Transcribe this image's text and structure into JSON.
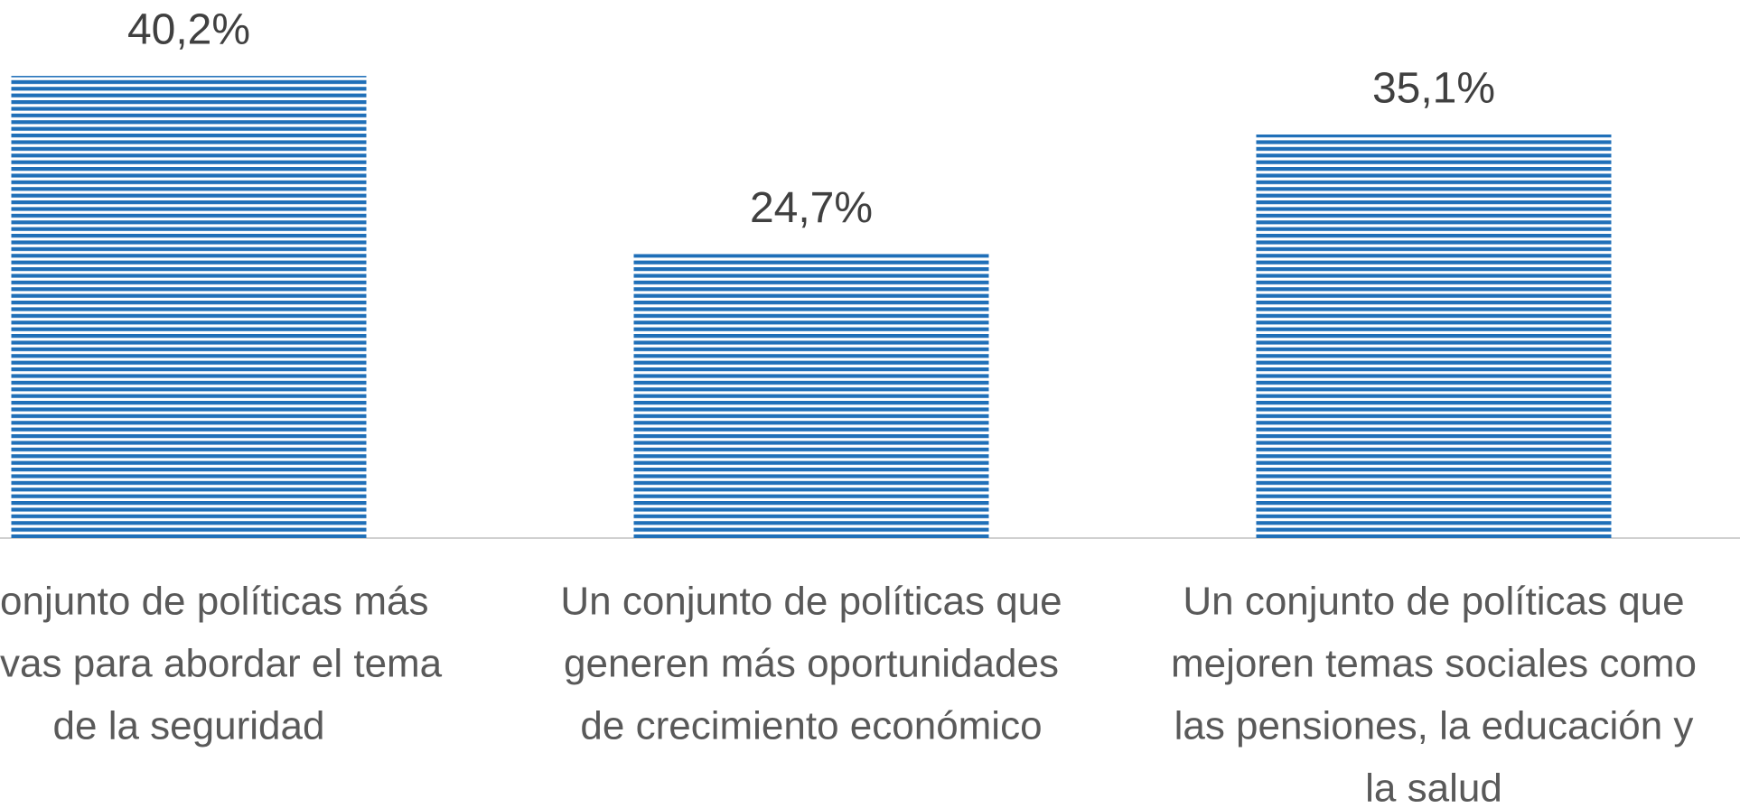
{
  "chart_data": {
    "type": "bar",
    "categories": [
      [
        "onjunto de políticas más",
        "vas para abordar el tema",
        "de la seguridad"
      ],
      [
        "Un conjunto de políticas que",
        "generen más oportunidades",
        "de crecimiento económico"
      ],
      [
        "Un conjunto de políticas que",
        "mejoren temas sociales como",
        "las pensiones, la educación y",
        "la salud"
      ]
    ],
    "values": [
      40.2,
      24.7,
      35.1
    ],
    "value_labels": [
      "40,2%",
      "24,7%",
      "35,1%"
    ],
    "color": "#1f6fb8",
    "ylim": [
      0,
      46.8
    ]
  }
}
